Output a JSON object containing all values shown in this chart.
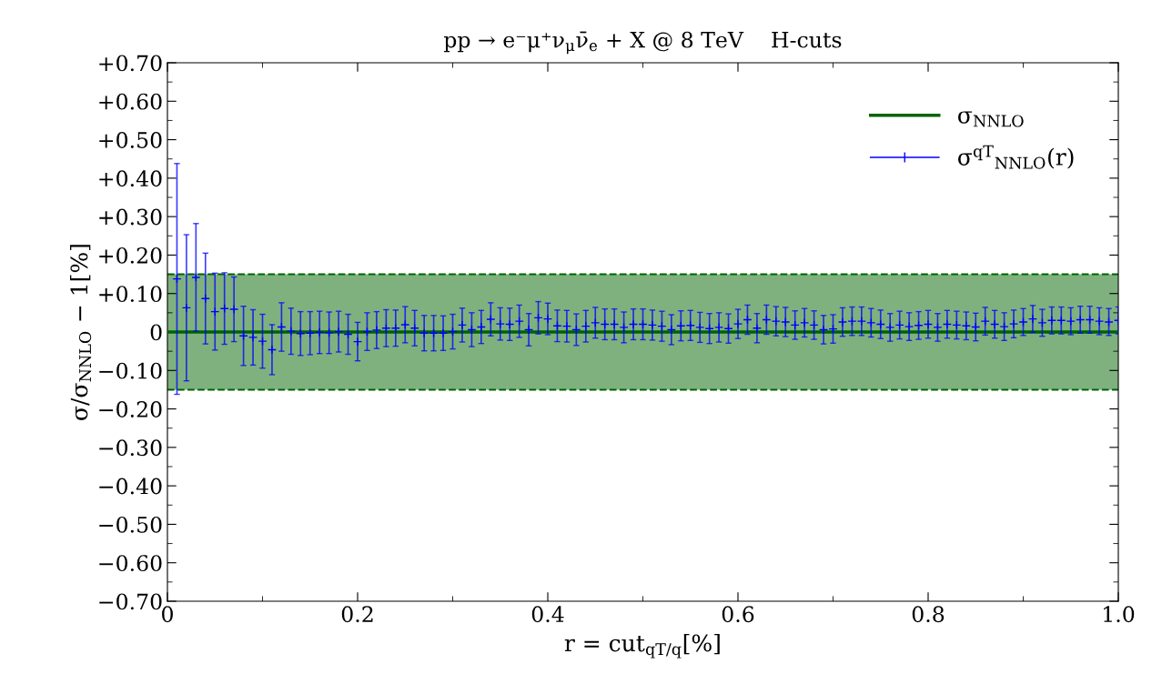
{
  "chart_data": {
    "type": "line",
    "title": "pp → e⁻μ⁺ν$_{μ}$ν̄$_{e}$ + X @ 8 TeV    H-cuts",
    "xlabel": "r = cut$_{qT/q}$[%]",
    "ylabel": "σ/σ$_{NNLO}$ − 1[%]",
    "xlim": [
      0,
      1.0
    ],
    "xticks": [
      {
        "value": 0,
        "label": "0"
      },
      0.2,
      0.4,
      0.6,
      0.8,
      {
        "value": 1.0,
        "label": "1.0"
      }
    ],
    "ylim": [
      -0.7,
      0.7
    ],
    "yticks": [
      {
        "value": -0.7,
        "label": "−0.70"
      },
      {
        "value": -0.6,
        "label": "−0.60"
      },
      {
        "value": -0.5,
        "label": "−0.50"
      },
      {
        "value": -0.4,
        "label": "−0.40"
      },
      {
        "value": -0.3,
        "label": "−0.30"
      },
      {
        "value": -0.2,
        "label": "−0.20"
      },
      {
        "value": -0.1,
        "label": "−0.10"
      },
      {
        "value": 0,
        "label": "0"
      },
      {
        "value": 0.1,
        "label": "+0.10"
      },
      {
        "value": 0.2,
        "label": "+0.20"
      },
      {
        "value": 0.3,
        "label": "+0.30"
      },
      {
        "value": 0.4,
        "label": "+0.40"
      },
      {
        "value": 0.5,
        "label": "+0.50"
      },
      {
        "value": 0.6,
        "label": "+0.60"
      },
      {
        "value": 0.7,
        "label": "+0.70"
      }
    ],
    "grid": false,
    "legend": "top right",
    "bands": [
      {
        "axis": "y",
        "from": -0.15,
        "to": 0.15,
        "color": "#006400"
      }
    ],
    "ref_lines": [
      {
        "axis": "y",
        "value": -0.15,
        "color": "#006400",
        "line_style": "dashed"
      },
      {
        "axis": "y",
        "value": 0.15,
        "color": "#006400",
        "line_style": "dashed"
      }
    ],
    "series": [
      {
        "name": "σ$_{NNLO}$",
        "color": "#006400",
        "x": [
          0,
          1.0
        ],
        "values": [
          0,
          0
        ],
        "line_style": "solid",
        "marker": "none"
      },
      {
        "name": "σ$^{qT}$$_{NNLO}$(r)",
        "type": "scatter",
        "color": "#0000ff",
        "marker": "cross",
        "x": [
          0.01,
          0.02,
          0.03,
          0.04,
          0.05,
          0.06,
          0.07,
          0.08,
          0.09,
          0.1,
          0.11,
          0.12,
          0.13,
          0.14,
          0.15,
          0.16,
          0.17,
          0.18,
          0.19,
          0.2,
          0.21,
          0.22,
          0.23,
          0.24,
          0.25,
          0.26,
          0.27,
          0.28,
          0.29,
          0.3,
          0.31,
          0.32,
          0.33,
          0.34,
          0.35,
          0.36,
          0.37,
          0.38,
          0.39,
          0.4,
          0.41,
          0.42,
          0.43,
          0.44,
          0.45,
          0.46,
          0.47,
          0.48,
          0.49,
          0.5,
          0.51,
          0.52,
          0.53,
          0.54,
          0.55,
          0.56,
          0.57,
          0.58,
          0.59,
          0.6,
          0.61,
          0.62,
          0.63,
          0.64,
          0.65,
          0.66,
          0.67,
          0.68,
          0.69,
          0.7,
          0.71,
          0.72,
          0.73,
          0.74,
          0.75,
          0.76,
          0.77,
          0.78,
          0.79,
          0.8,
          0.81,
          0.82,
          0.83,
          0.84,
          0.85,
          0.86,
          0.87,
          0.88,
          0.89,
          0.9,
          0.91,
          0.92,
          0.93,
          0.94,
          0.95,
          0.96,
          0.97,
          0.98,
          0.99,
          1.0
        ],
        "values": [
          0.138,
          0.063,
          0.142,
          0.087,
          0.053,
          0.061,
          0.059,
          -0.01,
          -0.014,
          -0.024,
          -0.046,
          0.013,
          0.002,
          -0.004,
          -0.003,
          -0.001,
          -0.002,
          0.001,
          -0.006,
          -0.025,
          0.001,
          0.005,
          0.01,
          0.01,
          0.019,
          0.01,
          -0.003,
          -0.003,
          -0.003,
          0.001,
          0.018,
          0.006,
          0.013,
          0.033,
          0.021,
          0.02,
          0.028,
          0.006,
          0.037,
          0.034,
          0.016,
          0.015,
          0.006,
          0.015,
          0.024,
          0.02,
          0.02,
          0.012,
          0.02,
          0.02,
          0.018,
          0.015,
          0.006,
          0.016,
          0.017,
          0.012,
          0.009,
          0.012,
          0.009,
          0.021,
          0.032,
          0.01,
          0.032,
          0.028,
          0.026,
          0.018,
          0.024,
          0.018,
          0.006,
          0.008,
          0.026,
          0.028,
          0.028,
          0.024,
          0.02,
          0.012,
          0.018,
          0.014,
          0.017,
          0.02,
          0.012,
          0.02,
          0.018,
          0.016,
          0.013,
          0.028,
          0.02,
          0.014,
          0.021,
          0.026,
          0.034,
          0.024,
          0.03,
          0.03,
          0.028,
          0.032,
          0.032,
          0.028,
          0.026,
          0.03
        ],
        "errors": [
          0.3,
          0.19,
          0.14,
          0.118,
          0.1,
          0.093,
          0.084,
          0.077,
          0.072,
          0.07,
          0.065,
          0.063,
          0.06,
          0.057,
          0.056,
          0.055,
          0.054,
          0.053,
          0.052,
          0.05,
          0.049,
          0.048,
          0.048,
          0.047,
          0.047,
          0.046,
          0.046,
          0.046,
          0.045,
          0.045,
          0.044,
          0.044,
          0.043,
          0.043,
          0.042,
          0.042,
          0.042,
          0.042,
          0.042,
          0.041,
          0.041,
          0.041,
          0.041,
          0.041,
          0.04,
          0.04,
          0.04,
          0.04,
          0.04,
          0.04,
          0.039,
          0.039,
          0.039,
          0.039,
          0.039,
          0.039,
          0.039,
          0.038,
          0.038,
          0.038,
          0.038,
          0.038,
          0.038,
          0.038,
          0.038,
          0.037,
          0.037,
          0.037,
          0.037,
          0.037,
          0.037,
          0.037,
          0.037,
          0.037,
          0.037,
          0.036,
          0.036,
          0.036,
          0.036,
          0.036,
          0.036,
          0.036,
          0.036,
          0.036,
          0.036,
          0.036,
          0.036,
          0.036,
          0.036,
          0.035,
          0.035,
          0.035,
          0.035,
          0.035,
          0.035,
          0.035,
          0.035,
          0.035,
          0.035,
          0.035
        ]
      }
    ]
  }
}
